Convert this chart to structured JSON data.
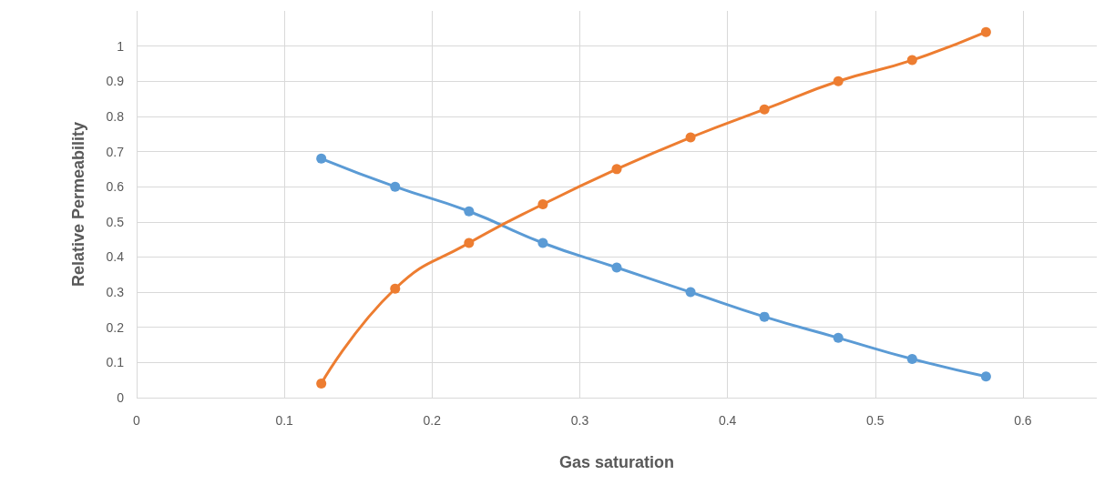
{
  "chart_data": {
    "type": "line",
    "xlabel": "Gas saturation",
    "ylabel": "Relative Permeability",
    "x": [
      0.125,
      0.175,
      0.225,
      0.275,
      0.325,
      0.375,
      0.425,
      0.475,
      0.525,
      0.575
    ],
    "series": [
      {
        "color": "#5b9bd5",
        "values": [
          0.68,
          0.6,
          0.53,
          0.44,
          0.37,
          0.3,
          0.23,
          0.17,
          0.11,
          0.06
        ]
      },
      {
        "color": "#ed7d31",
        "values": [
          0.04,
          0.31,
          0.44,
          0.55,
          0.65,
          0.74,
          0.82,
          0.9,
          0.96,
          1.04
        ]
      }
    ],
    "xlim": [
      0,
      0.65
    ],
    "xticks": [
      0,
      0.1,
      0.2,
      0.3,
      0.4,
      0.5,
      0.6
    ],
    "ylim": [
      0,
      1.1
    ],
    "yticks": [
      0,
      0.1,
      0.2,
      0.3,
      0.4,
      0.5,
      0.6,
      0.7,
      0.8,
      0.9,
      1
    ],
    "grid": true,
    "marker": "circle",
    "line_style": "solid"
  }
}
